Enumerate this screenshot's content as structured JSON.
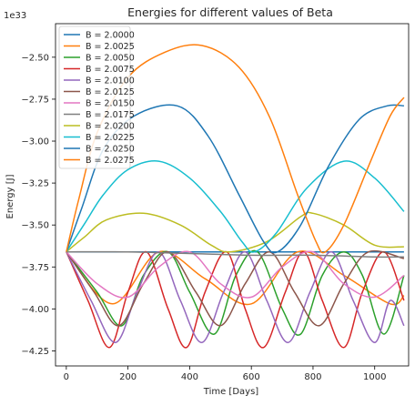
{
  "chart_data": {
    "type": "line",
    "title": "Energies for different values of Beta",
    "xlabel": "Time [Days]",
    "ylabel": "Energy [J]",
    "y_offset_label": "1e33",
    "y_scale_factor": 1e+33,
    "xlim": [
      -35,
      1110
    ],
    "ylim": [
      -4.34,
      -2.3
    ],
    "x_ticks": [
      0,
      200,
      400,
      600,
      800,
      1000
    ],
    "x_tick_labels": [
      "0",
      "200",
      "400",
      "600",
      "800",
      "1000"
    ],
    "y_ticks": [
      -4.25,
      -4.0,
      -3.75,
      -3.5,
      -3.25,
      -3.0,
      -2.75,
      -2.5
    ],
    "y_tick_labels": [
      "−4.25",
      "−4.00",
      "−3.75",
      "−3.50",
      "−3.25",
      "−3.00",
      "−2.75",
      "−2.50"
    ],
    "grid": false,
    "legend_position": "top-left",
    "series": [
      {
        "name": "B = 2.0000",
        "color": "#1f77b4",
        "points": [
          [
            0,
            -3.66
          ],
          [
            200,
            -3.66
          ],
          [
            400,
            -3.66
          ],
          [
            600,
            -3.66
          ],
          [
            800,
            -3.66
          ],
          [
            1000,
            -3.66
          ],
          [
            1095,
            -3.66
          ]
        ]
      },
      {
        "name": "B = 2.0025",
        "color": "#ff7f0e",
        "points": [
          [
            0,
            -3.66
          ],
          [
            150,
            -3.97
          ],
          [
            300,
            -3.66
          ],
          [
            450,
            -3.82
          ],
          [
            600,
            -3.97
          ],
          [
            750,
            -3.66
          ],
          [
            900,
            -3.8
          ],
          [
            1050,
            -3.97
          ],
          [
            1095,
            -3.92
          ]
        ]
      },
      {
        "name": "B = 2.0050",
        "color": "#2ca02c",
        "points": [
          [
            0,
            -3.66
          ],
          [
            100,
            -3.9
          ],
          [
            180,
            -4.1
          ],
          [
            250,
            -3.8
          ],
          [
            330,
            -3.66
          ],
          [
            400,
            -3.9
          ],
          [
            480,
            -4.15
          ],
          [
            550,
            -3.8
          ],
          [
            620,
            -3.66
          ],
          [
            700,
            -4.0
          ],
          [
            760,
            -4.15
          ],
          [
            830,
            -3.8
          ],
          [
            900,
            -3.66
          ],
          [
            960,
            -3.8
          ],
          [
            1030,
            -4.15
          ],
          [
            1095,
            -3.8
          ]
        ]
      },
      {
        "name": "B = 2.0075",
        "color": "#d62728",
        "points": [
          [
            0,
            -3.66
          ],
          [
            70,
            -3.95
          ],
          [
            140,
            -4.23
          ],
          [
            200,
            -3.9
          ],
          [
            260,
            -3.66
          ],
          [
            330,
            -4.0
          ],
          [
            390,
            -4.23
          ],
          [
            450,
            -3.9
          ],
          [
            520,
            -3.66
          ],
          [
            580,
            -4.0
          ],
          [
            640,
            -4.23
          ],
          [
            710,
            -3.9
          ],
          [
            770,
            -3.66
          ],
          [
            830,
            -3.95
          ],
          [
            900,
            -4.23
          ],
          [
            960,
            -3.9
          ],
          [
            1030,
            -3.66
          ],
          [
            1095,
            -3.95
          ]
        ]
      },
      {
        "name": "B = 2.0100",
        "color": "#9467bd",
        "points": [
          [
            0,
            -3.66
          ],
          [
            80,
            -3.95
          ],
          [
            160,
            -4.2
          ],
          [
            230,
            -3.9
          ],
          [
            300,
            -3.66
          ],
          [
            370,
            -3.95
          ],
          [
            440,
            -4.2
          ],
          [
            510,
            -3.9
          ],
          [
            580,
            -3.66
          ],
          [
            650,
            -3.95
          ],
          [
            720,
            -4.2
          ],
          [
            790,
            -3.9
          ],
          [
            860,
            -3.66
          ],
          [
            930,
            -3.95
          ],
          [
            1000,
            -4.2
          ],
          [
            1050,
            -3.95
          ],
          [
            1095,
            -4.1
          ]
        ]
      },
      {
        "name": "B = 2.0125",
        "color": "#8c564b",
        "points": [
          [
            0,
            -3.66
          ],
          [
            90,
            -3.9
          ],
          [
            170,
            -4.1
          ],
          [
            250,
            -3.85
          ],
          [
            330,
            -3.66
          ],
          [
            420,
            -3.9
          ],
          [
            500,
            -4.1
          ],
          [
            580,
            -3.85
          ],
          [
            660,
            -3.66
          ],
          [
            740,
            -3.9
          ],
          [
            820,
            -4.1
          ],
          [
            900,
            -3.85
          ],
          [
            980,
            -3.66
          ],
          [
            1095,
            -3.7
          ]
        ]
      },
      {
        "name": "B = 2.0150",
        "color": "#e377c2",
        "points": [
          [
            0,
            -3.66
          ],
          [
            100,
            -3.85
          ],
          [
            200,
            -3.93
          ],
          [
            300,
            -3.75
          ],
          [
            400,
            -3.66
          ],
          [
            500,
            -3.85
          ],
          [
            600,
            -3.93
          ],
          [
            700,
            -3.75
          ],
          [
            800,
            -3.66
          ],
          [
            900,
            -3.85
          ],
          [
            1000,
            -3.93
          ],
          [
            1095,
            -3.8
          ]
        ]
      },
      {
        "name": "B = 2.0175",
        "color": "#7f7f7f",
        "points": [
          [
            0,
            -3.66
          ],
          [
            200,
            -3.66
          ],
          [
            400,
            -3.67
          ],
          [
            600,
            -3.68
          ],
          [
            800,
            -3.68
          ],
          [
            1000,
            -3.69
          ],
          [
            1095,
            -3.69
          ]
        ]
      },
      {
        "name": "B = 2.0200",
        "color": "#bcbd22",
        "points": [
          [
            0,
            -3.66
          ],
          [
            60,
            -3.57
          ],
          [
            130,
            -3.47
          ],
          [
            250,
            -3.43
          ],
          [
            370,
            -3.5
          ],
          [
            470,
            -3.62
          ],
          [
            530,
            -3.66
          ],
          [
            650,
            -3.6
          ],
          [
            760,
            -3.45
          ],
          [
            800,
            -3.43
          ],
          [
            900,
            -3.5
          ],
          [
            1000,
            -3.62
          ],
          [
            1095,
            -3.63
          ]
        ]
      },
      {
        "name": "B = 2.0225",
        "color": "#17becf",
        "points": [
          [
            0,
            -3.66
          ],
          [
            60,
            -3.49
          ],
          [
            120,
            -3.32
          ],
          [
            200,
            -3.17
          ],
          [
            300,
            -3.12
          ],
          [
            400,
            -3.22
          ],
          [
            500,
            -3.42
          ],
          [
            570,
            -3.6
          ],
          [
            610,
            -3.66
          ],
          [
            680,
            -3.55
          ],
          [
            780,
            -3.28
          ],
          [
            900,
            -3.12
          ],
          [
            1000,
            -3.22
          ],
          [
            1095,
            -3.42
          ]
        ]
      },
      {
        "name": "B = 2.0250",
        "color": "#1f77b4",
        "points": [
          [
            0,
            -3.66
          ],
          [
            50,
            -3.4
          ],
          [
            120,
            -3.05
          ],
          [
            220,
            -2.85
          ],
          [
            360,
            -2.79
          ],
          [
            460,
            -2.97
          ],
          [
            560,
            -3.32
          ],
          [
            640,
            -3.6
          ],
          [
            685,
            -3.66
          ],
          [
            760,
            -3.5
          ],
          [
            850,
            -3.15
          ],
          [
            950,
            -2.87
          ],
          [
            1040,
            -2.79
          ],
          [
            1095,
            -2.79
          ]
        ]
      },
      {
        "name": "B = 2.0275",
        "color": "#ff7f0e",
        "points": [
          [
            0,
            -3.66
          ],
          [
            40,
            -3.35
          ],
          [
            100,
            -2.95
          ],
          [
            200,
            -2.62
          ],
          [
            320,
            -2.47
          ],
          [
            440,
            -2.43
          ],
          [
            560,
            -2.56
          ],
          [
            660,
            -2.86
          ],
          [
            750,
            -3.32
          ],
          [
            810,
            -3.6
          ],
          [
            840,
            -3.66
          ],
          [
            900,
            -3.5
          ],
          [
            980,
            -3.15
          ],
          [
            1050,
            -2.85
          ],
          [
            1095,
            -2.74
          ]
        ]
      }
    ]
  }
}
